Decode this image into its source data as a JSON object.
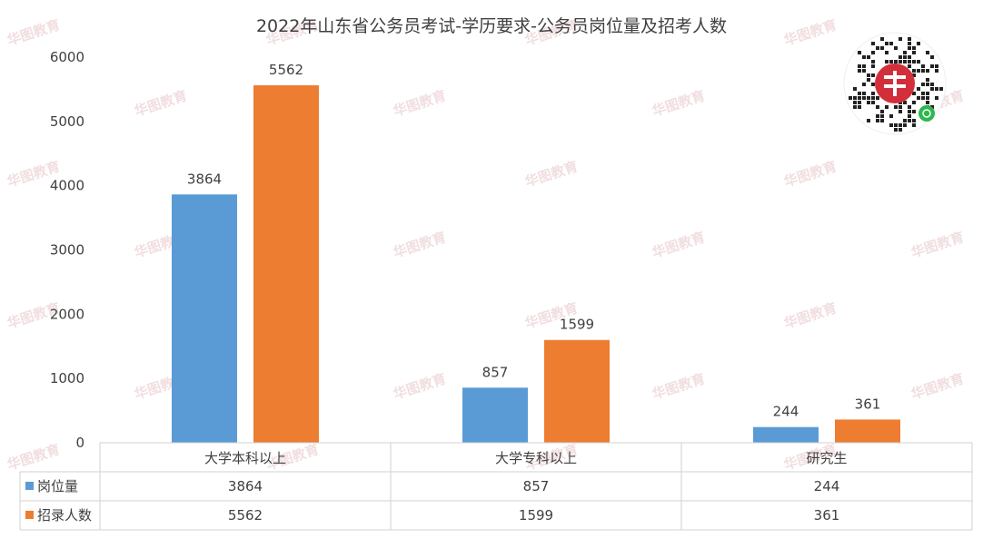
{
  "chart_data": {
    "type": "bar",
    "title": "2022年山东省公务员考试-学历要求-公务员岗位量及招考人数",
    "categories": [
      "大学本科以上",
      "大学专科以上",
      "研究生"
    ],
    "series": [
      {
        "name": "岗位量",
        "values": [
          3864,
          857,
          244
        ],
        "color": "#5b9bd5"
      },
      {
        "name": "招录人数",
        "values": [
          5562,
          1599,
          361
        ],
        "color": "#ed7d31"
      }
    ],
    "ylim": [
      0,
      6000
    ],
    "yticks": [
      0,
      1000,
      2000,
      3000,
      4000,
      5000,
      6000
    ],
    "grid": false,
    "legend": "data-table",
    "data_labels": true
  },
  "watermark": {
    "text": "华图教育"
  },
  "qr_code": {
    "icon": "wechat-mini-program-qr-icon"
  }
}
